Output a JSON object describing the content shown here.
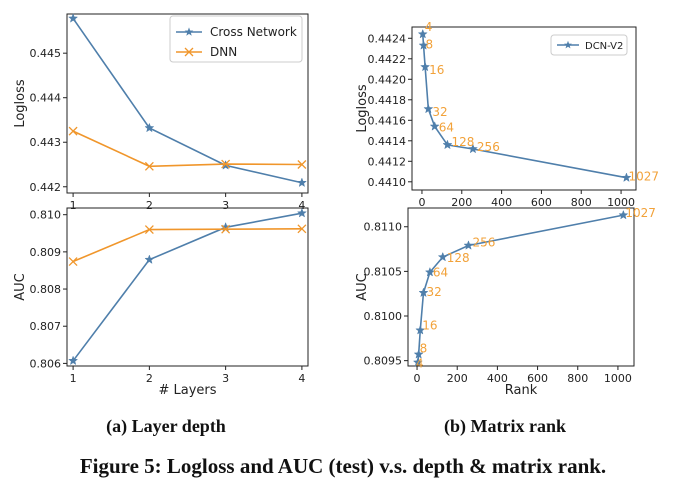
{
  "caption": "Figure 5: Logloss and AUC (test) v.s. depth & matrix rank.",
  "colors": {
    "cross": "#4f7fab",
    "dnn": "#f0962b",
    "annotation": "#f2a23a",
    "axis": "#222222"
  },
  "chart_data": [
    {
      "id": "layers-logloss",
      "type": "line",
      "ylabel": "Logloss",
      "xlabel": "",
      "x": [
        1,
        2,
        3,
        4
      ],
      "xlim": [
        0.92,
        4.08
      ],
      "ylim": [
        0.44186,
        0.44588
      ],
      "yticks": [
        0.442,
        0.443,
        0.444,
        0.445
      ],
      "ytick_labels": [
        "0.442",
        "0.443",
        "0.444",
        "0.445"
      ],
      "xticks": [
        1,
        2,
        3,
        4
      ],
      "xtick_labels": [
        "1",
        "2",
        "3",
        "4"
      ],
      "legend_position": "top-right",
      "series": [
        {
          "name": "Cross Network",
          "marker": "star",
          "color": "#4f7fab",
          "values": [
            0.44578,
            0.44332,
            0.44248,
            0.44209
          ]
        },
        {
          "name": "DNN",
          "marker": "x",
          "color": "#f0962b",
          "values": [
            0.44325,
            0.44246,
            0.44251,
            0.4425
          ]
        }
      ]
    },
    {
      "id": "layers-auc",
      "type": "line",
      "ylabel": "AUC",
      "xlabel": "# Layers",
      "x": [
        1,
        2,
        3,
        4
      ],
      "xlim": [
        0.92,
        4.08
      ],
      "ylim": [
        0.80593,
        0.81018
      ],
      "yticks": [
        0.806,
        0.807,
        0.808,
        0.809,
        0.81
      ],
      "ytick_labels": [
        "0.806",
        "0.807",
        "0.808",
        "0.809",
        "0.810"
      ],
      "xticks": [
        1,
        2,
        3,
        4
      ],
      "xtick_labels": [
        "1",
        "2",
        "3",
        "4"
      ],
      "series": [
        {
          "name": "Cross Network",
          "marker": "star",
          "color": "#4f7fab",
          "values": [
            0.80607,
            0.80879,
            0.80966,
            0.81004
          ]
        },
        {
          "name": "DNN",
          "marker": "x",
          "color": "#f0962b",
          "values": [
            0.80874,
            0.8096,
            0.80961,
            0.80962
          ]
        }
      ]
    },
    {
      "id": "rank-logloss",
      "type": "line",
      "ylabel": "Logloss",
      "xlabel": "",
      "xlim": [
        -50,
        1075
      ],
      "ylim": [
        0.44092,
        0.44251
      ],
      "yticks": [
        0.441,
        0.4412,
        0.4414,
        0.4416,
        0.4418,
        0.442,
        0.4422,
        0.4424
      ],
      "ytick_labels": [
        "0.4410",
        "0.4412",
        "0.4414",
        "0.4416",
        "0.4418",
        "0.4420",
        "0.4422",
        "0.4424"
      ],
      "xticks": [
        0,
        200,
        400,
        600,
        800,
        1000
      ],
      "xtick_labels": [
        "0",
        "200",
        "400",
        "600",
        "800",
        "1000"
      ],
      "legend_position": "top-right",
      "series": [
        {
          "name": "DCN-V2",
          "marker": "star",
          "color": "#4f7fab",
          "x": [
            4,
            8,
            16,
            32,
            64,
            128,
            256,
            1027
          ],
          "values": [
            0.44244,
            0.44233,
            0.44212,
            0.44171,
            0.44154,
            0.44136,
            0.44132,
            0.44104
          ],
          "point_labels": [
            "4",
            "8",
            "16",
            "32",
            "64",
            "128",
            "256",
            "1027"
          ]
        }
      ]
    },
    {
      "id": "rank-auc",
      "type": "line",
      "ylabel": "AUC",
      "xlabel": "Rank",
      "xlim": [
        -45,
        1080
      ],
      "ylim": [
        0.80944,
        0.81121
      ],
      "yticks": [
        0.8095,
        0.81,
        0.8105,
        0.811
      ],
      "ytick_labels": [
        "0.8095",
        "0.8100",
        "0.8105",
        "0.8110"
      ],
      "xticks": [
        0,
        200,
        400,
        600,
        800,
        1000
      ],
      "xtick_labels": [
        "0",
        "200",
        "400",
        "600",
        "800",
        "1000"
      ],
      "series": [
        {
          "name": "DCN-V2",
          "marker": "star",
          "color": "#4f7fab",
          "x": [
            4,
            8,
            16,
            32,
            64,
            128,
            256,
            1027
          ],
          "values": [
            0.80948,
            0.80957,
            0.80984,
            0.81026,
            0.81049,
            0.81066,
            0.81079,
            0.81113
          ],
          "point_labels": [
            "4",
            "8",
            "16",
            "32",
            "64",
            "128",
            "256",
            "1027"
          ]
        }
      ]
    }
  ],
  "subcaptions": [
    "(a) Layer depth",
    "(b) Matrix rank"
  ]
}
